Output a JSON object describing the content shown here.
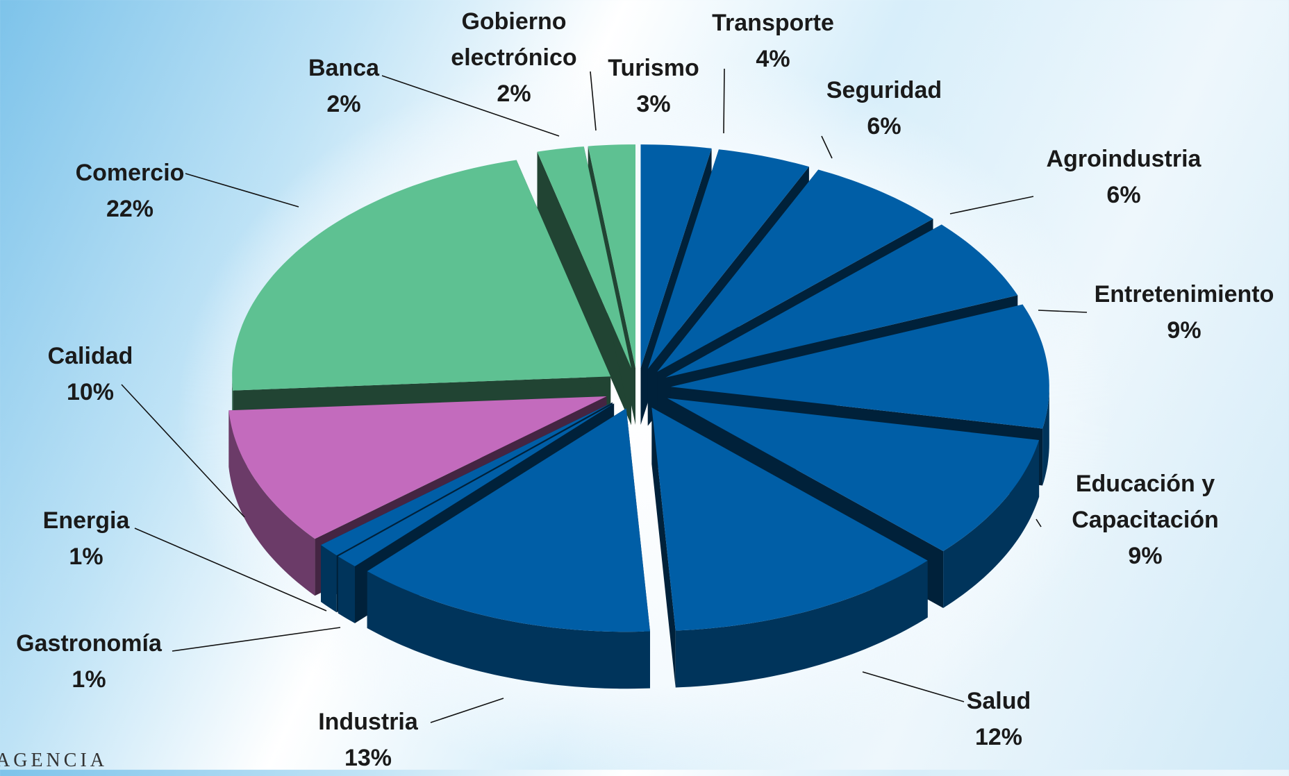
{
  "chart_data": {
    "type": "pie",
    "categories": [
      "Turismo",
      "Transporte",
      "Seguridad",
      "Agroindustria",
      "Entretenimiento",
      "Educación y Capacitación",
      "Salud",
      "Industria",
      "Gastronomía",
      "Energia",
      "Calidad",
      "Comercio",
      "Banca",
      "Gobierno electrónico"
    ],
    "values": [
      3,
      4,
      6,
      6,
      9,
      9,
      12,
      13,
      1,
      1,
      10,
      22,
      2,
      2
    ],
    "value_labels": [
      "3%",
      "4%",
      "6%",
      "6%",
      "9%",
      "9%",
      "12%",
      "13%",
      "1%",
      "1%",
      "10%",
      "22%",
      "2%",
      "2%"
    ],
    "colors": [
      "#005ea6",
      "#005ea6",
      "#005ea6",
      "#005ea6",
      "#005ea6",
      "#005ea6",
      "#005ea6",
      "#005ea6",
      "#005ea6",
      "#005ea6",
      "#c36bbd",
      "#5ec192",
      "#5ec192",
      "#5ec192"
    ]
  },
  "logo": "AGENCIA"
}
